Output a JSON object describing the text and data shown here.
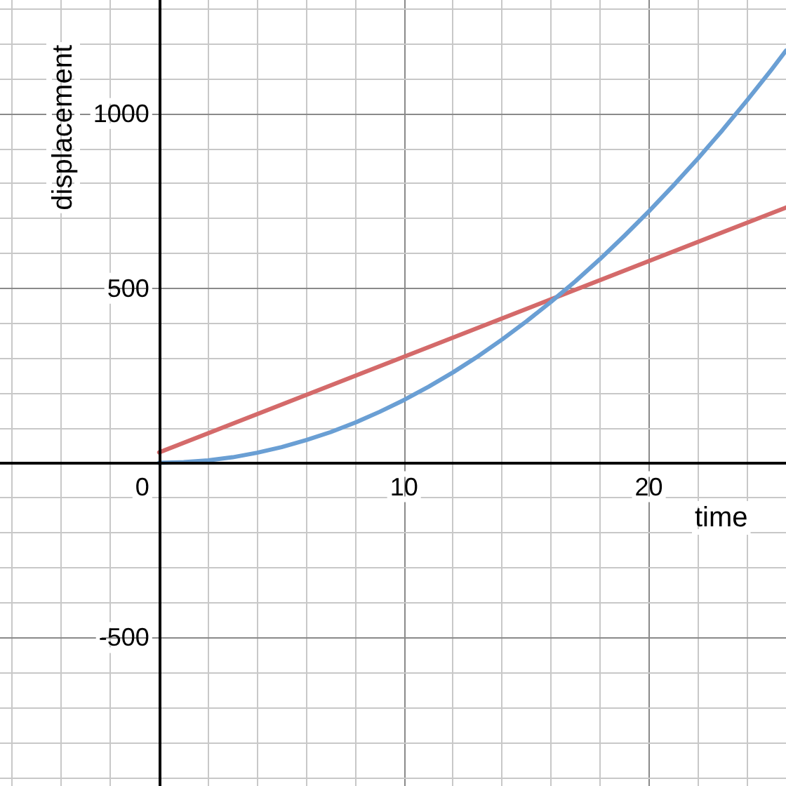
{
  "chart_data": {
    "type": "line",
    "xlabel": "time",
    "ylabel": "displacement",
    "xlim": [
      -6.5,
      25.6
    ],
    "ylim": [
      -925,
      1325
    ],
    "xticks": [
      {
        "value": -6,
        "label": null
      },
      {
        "value": -4,
        "label": null
      },
      {
        "value": -2,
        "label": null
      },
      0,
      {
        "value": 2,
        "label": null
      },
      {
        "value": 4,
        "label": null
      },
      {
        "value": 6,
        "label": null
      },
      {
        "value": 8,
        "label": null
      },
      10,
      {
        "value": 12,
        "label": null
      },
      {
        "value": 14,
        "label": null
      },
      {
        "value": 16,
        "label": null
      },
      {
        "value": 18,
        "label": null
      },
      20,
      {
        "value": 22,
        "label": null
      },
      {
        "value": 24,
        "label": null
      }
    ],
    "yticks": [
      {
        "value": -900,
        "label": null
      },
      {
        "value": -800,
        "label": null
      },
      {
        "value": -700,
        "label": null
      },
      {
        "value": -600,
        "label": null
      },
      -500,
      {
        "value": -400,
        "label": null
      },
      {
        "value": -300,
        "label": null
      },
      {
        "value": -200,
        "label": null
      },
      {
        "value": -100,
        "label": null
      },
      {
        "value": 0,
        "label": null
      },
      {
        "value": 100,
        "label": null
      },
      {
        "value": 200,
        "label": null
      },
      {
        "value": 300,
        "label": null
      },
      {
        "value": 400,
        "label": null
      },
      500,
      {
        "value": 600,
        "label": null
      },
      {
        "value": 700,
        "label": null
      },
      {
        "value": 800,
        "label": null
      },
      {
        "value": 900,
        "label": null
      },
      1000,
      {
        "value": 1100,
        "label": null
      },
      {
        "value": 1200,
        "label": null
      },
      {
        "value": 1300,
        "label": null
      }
    ],
    "grid": true,
    "marker": "none",
    "line_style": "solid",
    "series": [
      {
        "color": "#d46a6a",
        "x": [
          0,
          25.6
        ],
        "values": [
          30,
          731
        ]
      },
      {
        "color": "#6a9fd4",
        "x": [
          0,
          1,
          2,
          3,
          4,
          5,
          6,
          7,
          8,
          9,
          10,
          11,
          12,
          13,
          14,
          15,
          16,
          17,
          18,
          19,
          20,
          21,
          22,
          23,
          24,
          25,
          25.6
        ],
        "values": [
          0,
          2,
          7,
          16,
          29,
          45,
          65,
          88,
          115,
          146,
          180,
          218,
          259,
          304,
          353,
          405,
          461,
          520,
          583,
          650,
          720,
          794,
          871,
          952,
          1037,
          1125,
          1180
        ]
      }
    ]
  }
}
